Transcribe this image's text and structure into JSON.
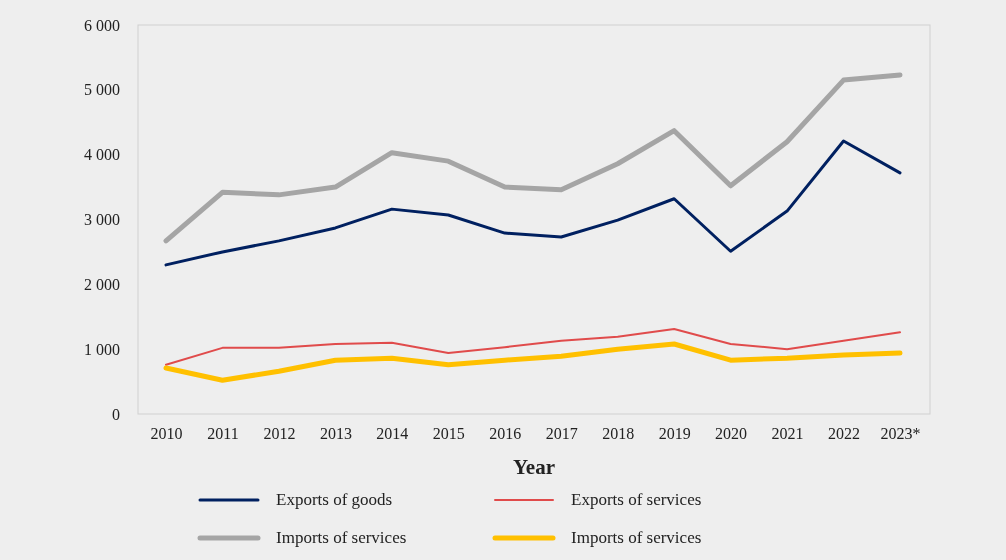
{
  "chart_data": {
    "type": "line",
    "xlabel": "Year",
    "categories": [
      "2010",
      "2011",
      "2012",
      "2013",
      "2014",
      "2015",
      "2016",
      "2017",
      "2018",
      "2019",
      "2020",
      "2021",
      "2022",
      "2023*"
    ],
    "ylim": [
      0,
      6000
    ],
    "yticks": [
      {
        "value": 0,
        "label": "0"
      },
      {
        "value": 1000,
        "label": "1 000"
      },
      {
        "value": 2000,
        "label": "2 000"
      },
      {
        "value": 3000,
        "label": "3 000"
      },
      {
        "value": 4000,
        "label": "4 000"
      },
      {
        "value": 5000,
        "label": "5 000"
      },
      {
        "value": 6000,
        "label": "6 000"
      }
    ],
    "grid": false,
    "legend": "bottom",
    "marker": "none",
    "line_style": "solid",
    "series": [
      {
        "name": "Exports of goods",
        "color": "#002060",
        "values": [
          2300,
          2500,
          2670,
          2870,
          3160,
          3070,
          2790,
          2730,
          2990,
          3320,
          2510,
          3130,
          4210,
          3720
        ]
      },
      {
        "name": "Exports of services",
        "color": "#e04b4b",
        "values": [
          760,
          1020,
          1020,
          1080,
          1100,
          940,
          1030,
          1130,
          1190,
          1310,
          1080,
          1000,
          1130,
          1260
        ]
      },
      {
        "name": "Imports of services",
        "color": "#a5a5a5",
        "values": [
          2670,
          3420,
          3380,
          3500,
          4030,
          3900,
          3500,
          3460,
          3860,
          4370,
          3520,
          4200,
          5150,
          5230
        ]
      },
      {
        "name": "Imports of services",
        "color": "#ffc000",
        "values": [
          710,
          520,
          660,
          830,
          860,
          760,
          830,
          890,
          1000,
          1080,
          830,
          860,
          910,
          940
        ]
      }
    ]
  }
}
